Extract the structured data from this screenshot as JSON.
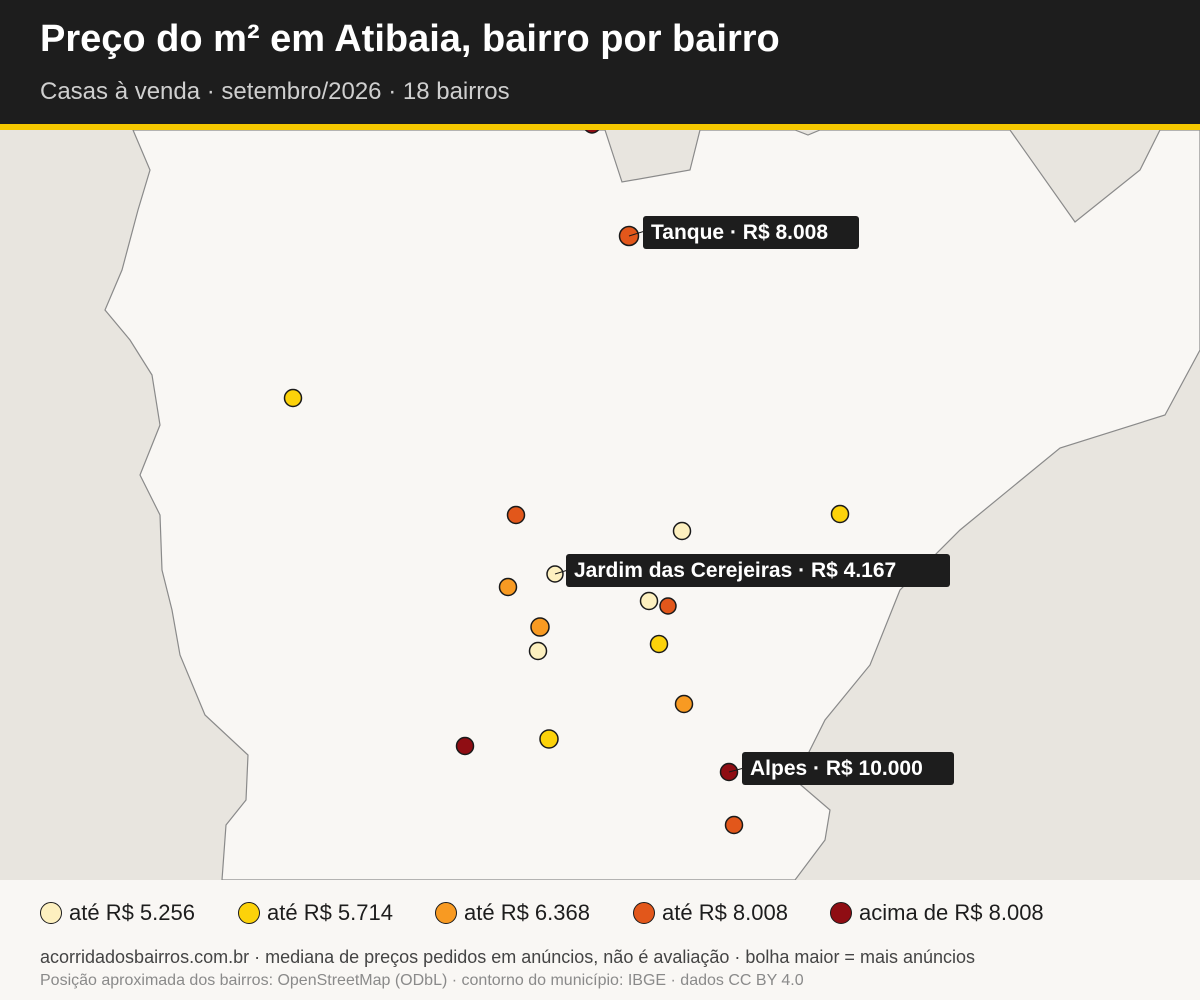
{
  "header": {
    "title": "Preço do m² em Atibaia, bairro por bairro",
    "subtitle": "Casas à venda · setembro/2026 · 18 bairros"
  },
  "colors": {
    "header_bg": "#1d1d1d",
    "accent": "#f5c800",
    "municipality_fill": "#f9f7f4",
    "outside_fill": "#e8e5df",
    "border_stroke": "#8a8a8a"
  },
  "legend": {
    "items": [
      {
        "label": "até R$ 5.256",
        "color": "#fdf0bf"
      },
      {
        "label": "até R$ 5.714",
        "color": "#fcd20a"
      },
      {
        "label": "até R$ 6.368",
        "color": "#f89a22"
      },
      {
        "label": "até R$ 8.008",
        "color": "#e2571b"
      },
      {
        "label": "acima de R$ 8.008",
        "color": "#8f0d13"
      }
    ]
  },
  "callouts": [
    {
      "text": "Tanque · R$ 8.008"
    },
    {
      "text": "Jardim das Cerejeiras · R$ 4.167"
    },
    {
      "text": "Alpes · R$ 10.000"
    }
  ],
  "footer": {
    "main": "acorridadosbairros.com.br · mediana de preços pedidos em anúncios, não é avaliação · bolha maior = mais anúncios",
    "credits": "Posição aproximada dos bairros: OpenStreetMap (ODbL) · contorno do município: IBGE · dados CC BY 4.0"
  }
}
